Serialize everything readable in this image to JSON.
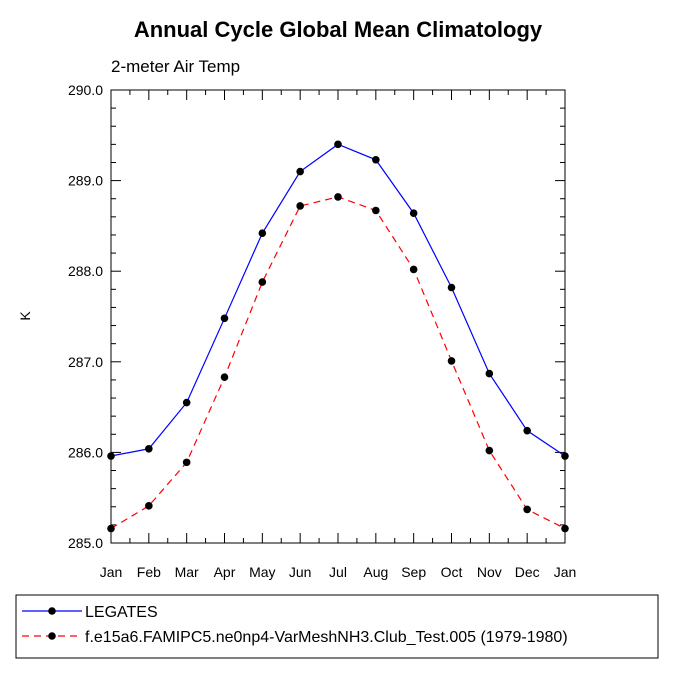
{
  "chart_data": {
    "type": "line",
    "title": "Annual Cycle Global Mean Climatology",
    "subtitle": "2-meter Air Temp",
    "xlabel": "",
    "ylabel": "K",
    "categories": [
      "Jan",
      "Feb",
      "Mar",
      "Apr",
      "May",
      "Jun",
      "Jul",
      "Aug",
      "Sep",
      "Oct",
      "Nov",
      "Dec",
      "Jan"
    ],
    "ylim": [
      285.0,
      290.0
    ],
    "yticks": [
      "285.0",
      "286.0",
      "287.0",
      "288.0",
      "289.0",
      "290.0"
    ],
    "series": [
      {
        "name": "LEGATES",
        "color": "#0000ff",
        "dash": "solid",
        "values": [
          285.96,
          286.04,
          286.55,
          287.48,
          288.42,
          289.1,
          289.4,
          289.23,
          288.64,
          287.82,
          286.87,
          286.24,
          285.96
        ]
      },
      {
        "name": "f.e15a6.FAMIPC5.ne0np4-VarMeshNH3.Club_Test.005 (1979-1980)",
        "color": "#ff0000",
        "dash": "dashed",
        "values": [
          285.16,
          285.41,
          285.89,
          286.83,
          287.88,
          288.72,
          288.82,
          288.67,
          288.02,
          287.01,
          286.02,
          285.37,
          285.16
        ]
      }
    ],
    "grid": false,
    "legend_position": "bottom"
  }
}
